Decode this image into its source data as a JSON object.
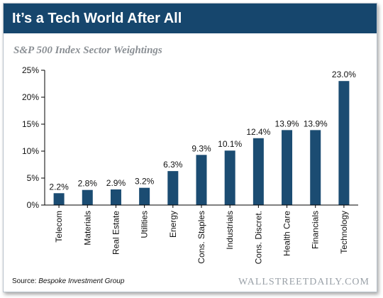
{
  "header": {
    "title": "It’s a Tech World After All",
    "subtitle": "S&P 500 Index Sector Weightings"
  },
  "footer": {
    "source_prefix": "Source: ",
    "source_name": "Bespoke Investment Group",
    "brand": "WALLSTREETDAILY.COM"
  },
  "colors": {
    "header_bg": "#16466d",
    "bar": "#1b4c72"
  },
  "chart_data": {
    "type": "bar",
    "categories": [
      "Telecom",
      "Materials",
      "Real Estate",
      "Utilities",
      "Energy",
      "Cons. Staples",
      "Industrials",
      "Cons. Discret.",
      "Health Care",
      "Financials",
      "Technology"
    ],
    "values": [
      2.2,
      2.8,
      2.9,
      3.2,
      6.3,
      9.3,
      10.1,
      12.4,
      13.9,
      13.9,
      23.0
    ],
    "value_labels": [
      "2.2%",
      "2.8%",
      "2.9%",
      "3.2%",
      "6.3%",
      "9.3%",
      "10.1%",
      "12.4%",
      "13.9%",
      "13.9%",
      "23.0%"
    ],
    "yticks": [
      0,
      5,
      10,
      15,
      20,
      25
    ],
    "ytick_labels": [
      "0%",
      "5%",
      "10%",
      "15%",
      "20%",
      "25%"
    ],
    "ylim": [
      0,
      25
    ],
    "grid": false,
    "legend": "none"
  }
}
